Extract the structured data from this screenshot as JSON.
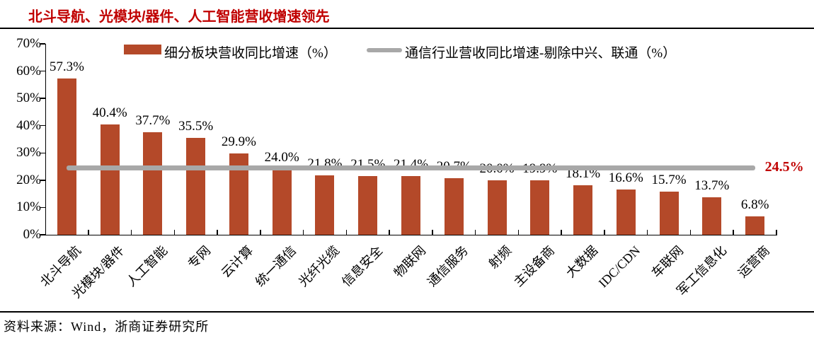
{
  "title": "北斗导航、光模块/器件、人工智能营收增速领先",
  "source": "资料来源：Wind，浙商证券研究所",
  "colors": {
    "bar": "#B44929",
    "line": "#A8A8A8",
    "title": "#C00000",
    "line_label": "#C00000",
    "axis": "#000000"
  },
  "y_axis": {
    "tick_labels": [
      "0%",
      "10%",
      "20%",
      "30%",
      "40%",
      "50%",
      "60%",
      "70%"
    ],
    "min": 0,
    "max": 70
  },
  "chart_data": {
    "type": "bar",
    "title": "北斗导航、光模块/器件、人工智能营收增速领先",
    "categories": [
      "北斗导航",
      "光模块/器件",
      "人工智能",
      "专网",
      "云计算",
      "统一通信",
      "光纤光缆",
      "信息安全",
      "物联网",
      "通信服务",
      "射频",
      "主设备商",
      "大数据",
      "IDC/CDN",
      "车联网",
      "军工信息化",
      "运营商"
    ],
    "series": [
      {
        "name": "细分板块营收同比增速（%）",
        "type": "bar",
        "values": [
          57.3,
          40.4,
          37.7,
          35.5,
          29.9,
          24.0,
          21.8,
          21.5,
          21.4,
          20.7,
          20.0,
          19.9,
          18.1,
          16.6,
          15.7,
          13.7,
          6.8
        ],
        "labels": [
          "57.3%",
          "40.4%",
          "37.7%",
          "35.5%",
          "29.9%",
          "24.0%",
          "21.8%",
          "21.5%",
          "21.4%",
          "20.7%",
          "20.0%",
          "19.9%",
          "18.1%",
          "16.6%",
          "15.7%",
          "13.7%",
          "6.8%"
        ]
      },
      {
        "name": "通信行业营收同比增速-剔除中兴、联通（%）",
        "type": "line",
        "value": 24.5,
        "end_label": "24.5%"
      }
    ],
    "ylim": [
      0,
      70
    ],
    "xlabel": "",
    "ylabel": "",
    "grid": false,
    "legend_position": "top"
  }
}
